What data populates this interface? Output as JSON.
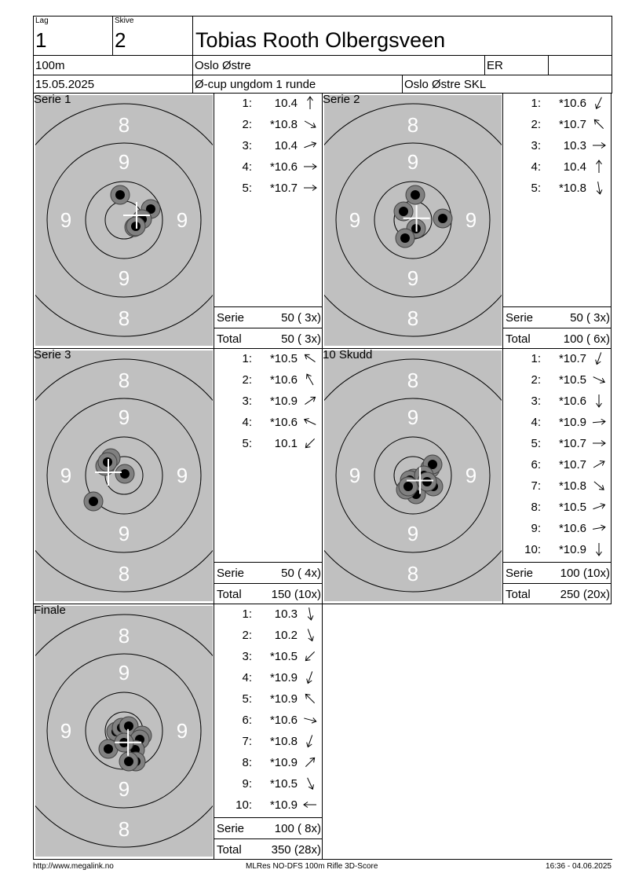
{
  "header": {
    "lag_label": "Lag",
    "lag": "1",
    "skive_label": "Skive",
    "skive": "2",
    "name": "Tobias Rooth Olbergsveen",
    "distance": "100m",
    "club": "Oslo Østre",
    "class": "ER",
    "extra": "",
    "date": "15.05.2025",
    "event": "Ø-cup ungdom 1 runde",
    "range": "Oslo Østre SKL"
  },
  "colors": {
    "target_bg": "#c0c0c0",
    "shot_ring": "#808080",
    "shot_center": "#000000",
    "ring_number": "#ffffff",
    "mpi_cross": "#ffffff"
  },
  "target_numbers": {
    "outer": "8",
    "inner": "9"
  },
  "series": [
    {
      "title": "Serie 1",
      "shots": [
        {
          "n": "1:",
          "v": "10.4",
          "dir": 0,
          "x": -5,
          "y": -32
        },
        {
          "n": "2:",
          "v": "*10.8",
          "dir": 120,
          "x": 34,
          "y": -14
        },
        {
          "n": "3:",
          "v": "10.4",
          "dir": 70,
          "x": 23,
          "y": -1
        },
        {
          "n": "4:",
          "v": "*10.6",
          "dir": 90,
          "x": 13,
          "y": 9
        },
        {
          "n": "5:",
          "v": "*10.7",
          "dir": 90,
          "x": 15,
          "y": 8
        }
      ],
      "serie_label": "Serie",
      "serie": "50 ( 3x)",
      "total_label": "Total",
      "total": "50 ( 3x)"
    },
    {
      "title": "Serie 2",
      "shots": [
        {
          "n": "1:",
          "v": "*10.6",
          "dir": 205,
          "x": 3,
          "y": -32
        },
        {
          "n": "2:",
          "v": "*10.7",
          "dir": 315,
          "x": -12,
          "y": -11
        },
        {
          "n": "3:",
          "v": "10.3",
          "dir": 90,
          "x": 38,
          "y": -2
        },
        {
          "n": "4:",
          "v": "10.4",
          "dir": 0,
          "x": 4,
          "y": 11
        },
        {
          "n": "5:",
          "v": "*10.8",
          "dir": 170,
          "x": -10,
          "y": 23
        }
      ],
      "serie_label": "Serie",
      "serie": "50 ( 3x)",
      "total_label": "Total",
      "total": "100 ( 6x)"
    },
    {
      "title": "Serie 3",
      "shots": [
        {
          "n": "1:",
          "v": "*10.5",
          "dir": 305,
          "x": -17,
          "y": -22
        },
        {
          "n": "2:",
          "v": "*10.6",
          "dir": 330,
          "x": -24,
          "y": -12
        },
        {
          "n": "3:",
          "v": "*10.9",
          "dir": 55,
          "x": 1,
          "y": -2
        },
        {
          "n": "4:",
          "v": "*10.6",
          "dir": 295,
          "x": -21,
          "y": -17
        },
        {
          "n": "5:",
          "v": "10.1",
          "dir": 225,
          "x": -39,
          "y": 33
        }
      ],
      "serie_label": "Serie",
      "serie": "50 ( 4x)",
      "total_label": "Total",
      "total": "150 (10x)"
    },
    {
      "title": "10 Skudd",
      "shots": [
        {
          "n": "1:",
          "v": "*10.7",
          "dir": 200,
          "x": 22,
          "y": -9
        },
        {
          "n": "2:",
          "v": "*10.5",
          "dir": 115,
          "x": 25,
          "y": -14
        },
        {
          "n": "3:",
          "v": "*10.6",
          "dir": 180,
          "x": 1,
          "y": 4
        },
        {
          "n": "4:",
          "v": "*10.9",
          "dir": 85,
          "x": 26,
          "y": 14
        },
        {
          "n": "5:",
          "v": "*10.7",
          "dir": 90,
          "x": 4,
          "y": 24
        },
        {
          "n": "6:",
          "v": "*10.7",
          "dir": 60,
          "x": -9,
          "y": 18
        },
        {
          "n": "7:",
          "v": "*10.8",
          "dir": 130,
          "x": -4,
          "y": 6
        },
        {
          "n": "8:",
          "v": "*10.5",
          "dir": 70,
          "x": 14,
          "y": 0
        },
        {
          "n": "9:",
          "v": "*10.6",
          "dir": 80,
          "x": 18,
          "y": 8
        },
        {
          "n": "10:",
          "v": "*10.9",
          "dir": 180,
          "x": -6,
          "y": 14
        }
      ],
      "serie_label": "Serie",
      "serie": "100 (10x)",
      "total_label": "Total",
      "total": "250 (20x)"
    },
    {
      "title": "Finale",
      "shots": [
        {
          "n": "1:",
          "v": "10.3",
          "dir": 170,
          "x": -10,
          "y": 1
        },
        {
          "n": "2:",
          "v": "10.2",
          "dir": 160,
          "x": -3,
          "y": -4
        },
        {
          "n": "3:",
          "v": "*10.5",
          "dir": 225,
          "x": 6,
          "y": -6
        },
        {
          "n": "4:",
          "v": "*10.9",
          "dir": 200,
          "x": 23,
          "y": 6
        },
        {
          "n": "5:",
          "v": "*10.9",
          "dir": 315,
          "x": 20,
          "y": 11
        },
        {
          "n": "6:",
          "v": "*10.6",
          "dir": 105,
          "x": -20,
          "y": 23
        },
        {
          "n": "7:",
          "v": "*10.8",
          "dir": 200,
          "x": 14,
          "y": 24
        },
        {
          "n": "8:",
          "v": "*10.9",
          "dir": 45,
          "x": 15,
          "y": 39
        },
        {
          "n": "9:",
          "v": "*10.5",
          "dir": 155,
          "x": 6,
          "y": 39
        },
        {
          "n": "10:",
          "v": "*10.9",
          "dir": 270,
          "x": 0,
          "y": 15
        }
      ],
      "serie_label": "Serie",
      "serie": "100 ( 8x)",
      "total_label": "Total",
      "total": "350 (28x)"
    }
  ],
  "footer": {
    "left": "http://www.megalink.no",
    "center": "MLRes NO-DFS 100m Rifle 3D-Score",
    "right": "16:36 - 04.06.2025"
  }
}
